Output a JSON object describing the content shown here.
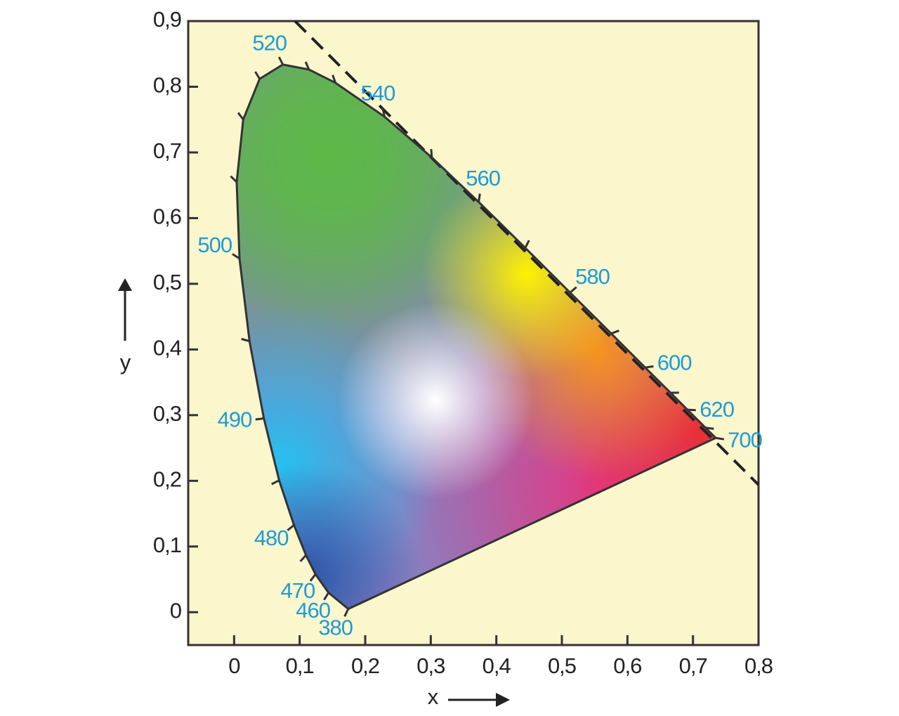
{
  "chart_data": {
    "type": "chromaticity",
    "x_label": "x",
    "y_label": "y",
    "xlim": [
      -0.07,
      0.8
    ],
    "ylim": [
      -0.05,
      0.9
    ],
    "xticks": [
      0,
      {
        "value": 0.1,
        "label": "0,1"
      },
      {
        "value": 0.2,
        "label": "0,2"
      },
      {
        "value": 0.3,
        "label": "0,3"
      },
      {
        "value": 0.4,
        "label": "0,4"
      },
      {
        "value": 0.5,
        "label": "0,5"
      },
      {
        "value": 0.6,
        "label": "0,6"
      },
      {
        "value": 0.7,
        "label": "0,7"
      },
      {
        "value": 0.8,
        "label": "0,8"
      }
    ],
    "yticks": [
      0,
      {
        "value": 0.1,
        "label": "0,1"
      },
      {
        "value": 0.2,
        "label": "0,2"
      },
      {
        "value": 0.3,
        "label": "0,3"
      },
      {
        "value": 0.4,
        "label": "0,4"
      },
      {
        "value": 0.5,
        "label": "0,5"
      },
      {
        "value": 0.6,
        "label": "0,6"
      },
      {
        "value": 0.7,
        "label": "0,7"
      },
      {
        "value": 0.8,
        "label": "0,8"
      },
      {
        "value": 0.9,
        "label": "0,9"
      }
    ],
    "wavelengths": [
      380,
      460,
      470,
      null,
      480,
      null,
      490,
      null,
      500,
      null,
      null,
      null,
      520,
      null,
      null,
      540,
      null,
      560,
      null,
      580,
      null,
      600,
      null,
      620,
      null,
      700
    ],
    "x": [
      0.1741,
      0.144,
      0.1241,
      0.1096,
      0.0913,
      0.0687,
      0.0454,
      0.0235,
      0.0082,
      0.0039,
      0.0139,
      0.0389,
      0.0743,
      0.1142,
      0.1547,
      0.2296,
      0.3016,
      0.3731,
      0.4441,
      0.5125,
      0.5752,
      0.627,
      0.6658,
      0.6915,
      0.719,
      0.7347
    ],
    "values": [
      0.005,
      0.0297,
      0.0578,
      0.0868,
      0.1327,
      0.2007,
      0.295,
      0.4127,
      0.5384,
      0.6548,
      0.7502,
      0.812,
      0.8338,
      0.8262,
      0.8059,
      0.7543,
      0.6923,
      0.6245,
      0.5547,
      0.4866,
      0.4242,
      0.3725,
      0.334,
      0.3083,
      0.2809,
      0.2653
    ]
  }
}
